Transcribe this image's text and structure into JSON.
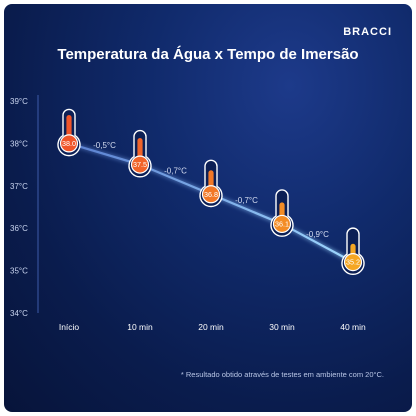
{
  "brand": "BRACCI",
  "footnote": "* Resultado obtido através de testes em ambiente com 20°C.",
  "colors": {
    "line": "#9fd8ff",
    "hot": "#f0552a",
    "warm": "#f5a623",
    "axis": "#3d5aa8"
  },
  "chart_data": {
    "type": "line",
    "title": "Temperatura da Água x Tempo de Imersão",
    "xlabel": "",
    "ylabel": "",
    "categories": [
      "Início",
      "10 min",
      "20 min",
      "30 min",
      "40 min"
    ],
    "values": [
      38.0,
      37.5,
      36.8,
      36.1,
      35.2
    ],
    "value_labels": [
      "38.0",
      "37.5",
      "36.8",
      "36.1",
      "35.2"
    ],
    "deltas": [
      "-0,5°C",
      "-0,7°C",
      "-0,7°C",
      "-0,9°C"
    ],
    "yticks": [
      "39°C",
      "38°C",
      "37°C",
      "36°C",
      "35°C",
      "34°C"
    ],
    "ylim": [
      34,
      39
    ],
    "grid": false,
    "icon": "thermometer-icon"
  }
}
